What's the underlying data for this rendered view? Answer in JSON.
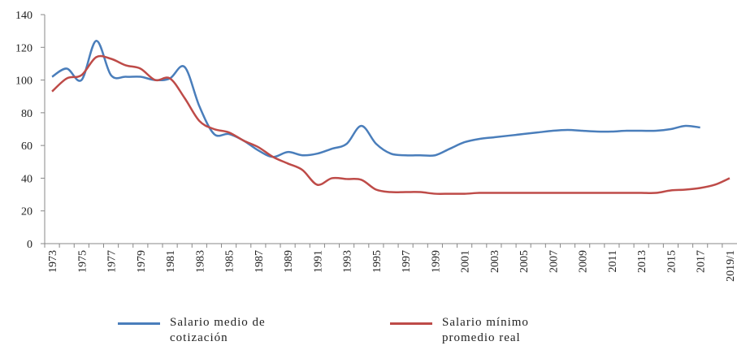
{
  "chart_data": {
    "type": "line",
    "categories": [
      "1973",
      null,
      "1975",
      null,
      "1977",
      null,
      "1979",
      null,
      "1981",
      null,
      "1983",
      null,
      "1985",
      null,
      "1987",
      null,
      "1989",
      null,
      "1991",
      null,
      "1993",
      null,
      "1995",
      null,
      "1997",
      null,
      "1999",
      null,
      "2001",
      null,
      "2003",
      null,
      "2005",
      null,
      "2007",
      null,
      "2009",
      null,
      "2011",
      null,
      "2013",
      null,
      "2015",
      null,
      "2017",
      null,
      "2019/1"
    ],
    "series": [
      {
        "name": "Salario medio de cotización",
        "color": "#4a7ebb",
        "values": [
          102,
          107,
          100,
          124,
          103,
          102,
          102,
          100,
          101,
          108,
          84,
          67,
          67,
          63,
          57,
          53,
          56,
          54,
          55,
          58,
          61,
          72,
          61,
          55,
          54,
          54,
          54,
          58,
          62,
          64,
          65,
          66,
          67,
          68,
          69,
          69.5,
          69,
          68.5,
          68.5,
          69,
          69,
          69,
          70,
          72,
          71,
          null,
          null
        ]
      },
      {
        "name": "Salario mínimo promedio real",
        "color": "#be4b48",
        "values": [
          93,
          101,
          103,
          114,
          113,
          109,
          107,
          100,
          101,
          89,
          75,
          70,
          68,
          63,
          59,
          53,
          49,
          45,
          36,
          40,
          39.5,
          39,
          33,
          31.5,
          31.5,
          31.5,
          30.5,
          30.5,
          30.5,
          31,
          31,
          31,
          31,
          31,
          31,
          31,
          31,
          31,
          31,
          31,
          31,
          31,
          32.5,
          33,
          34,
          36,
          40
        ]
      }
    ],
    "ylim": [
      0,
      140
    ],
    "yticks": [
      0,
      20,
      40,
      60,
      80,
      100,
      120,
      140
    ]
  }
}
